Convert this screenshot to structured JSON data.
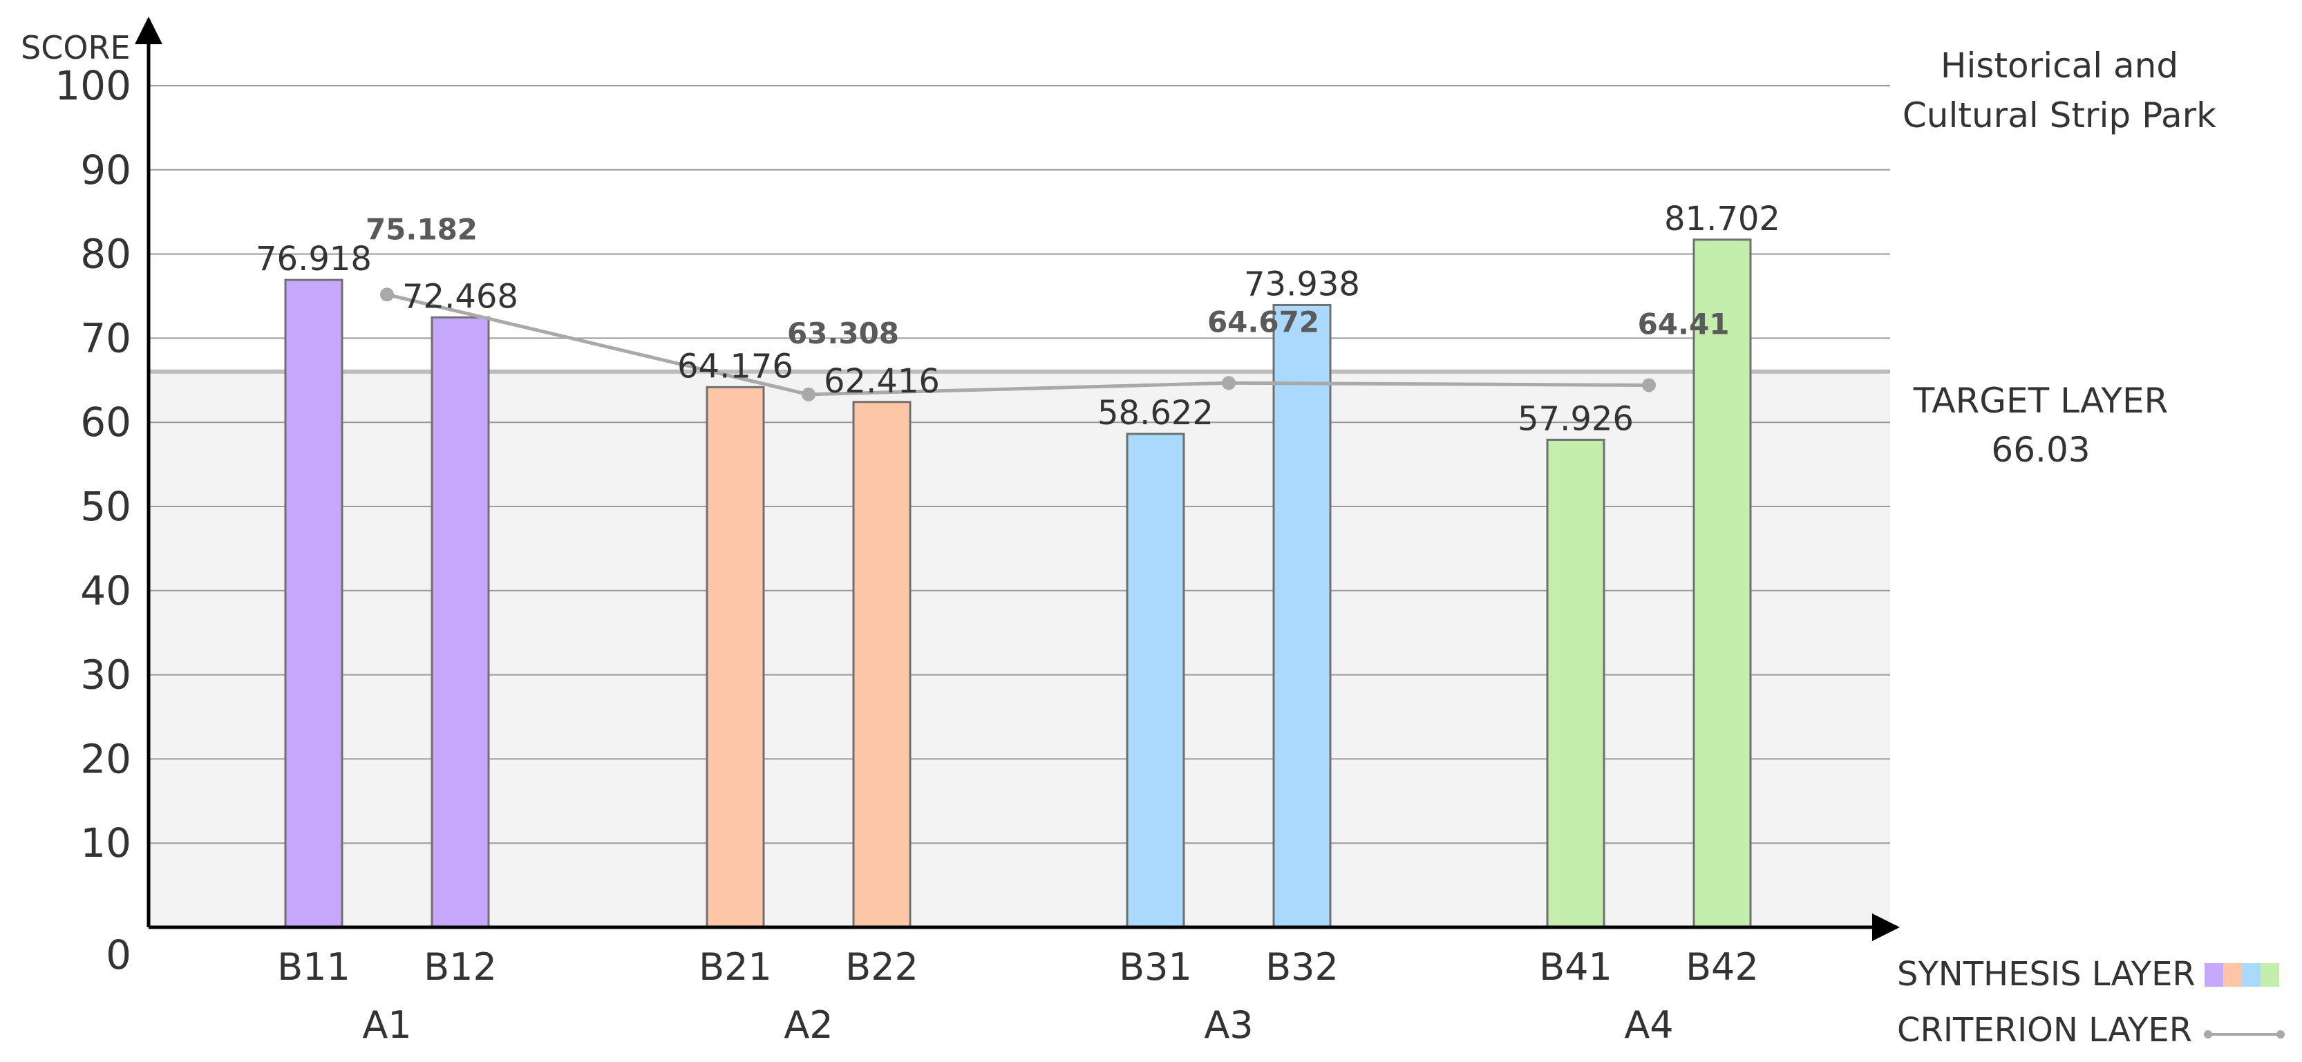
{
  "chart_data": {
    "type": "bar",
    "title": "Historical and Cultural Strip Park",
    "ylabel": "SCORE",
    "ylim": [
      0,
      100
    ],
    "yticks": [
      0,
      10,
      20,
      30,
      40,
      50,
      60,
      70,
      80,
      90,
      100
    ],
    "grid": true,
    "groups": [
      {
        "name": "A1",
        "color": "#c5a8fb",
        "bars": [
          {
            "label": "B11",
            "value": 76.918
          },
          {
            "label": "B12",
            "value": 72.468
          }
        ]
      },
      {
        "name": "A2",
        "color": "#fdc7a7",
        "bars": [
          {
            "label": "B21",
            "value": 64.176
          },
          {
            "label": "B22",
            "value": 62.416
          }
        ]
      },
      {
        "name": "A3",
        "color": "#a9d9fd",
        "bars": [
          {
            "label": "B31",
            "value": 58.622
          },
          {
            "label": "B32",
            "value": 73.938
          }
        ]
      },
      {
        "name": "A4",
        "color": "#c4eeac",
        "bars": [
          {
            "label": "B41",
            "value": 57.926
          },
          {
            "label": "B42",
            "value": 81.702
          }
        ]
      }
    ],
    "criterion_line": {
      "name": "CRITERION LAYER",
      "points": [
        {
          "group": "A1",
          "value": 75.182,
          "label": "75.182"
        },
        {
          "group": "A2",
          "value": 63.308,
          "label": "63.308"
        },
        {
          "group": "A3",
          "value": 64.672,
          "label": "64.672"
        },
        {
          "group": "A4",
          "value": 64.41,
          "label": "64.41"
        }
      ]
    },
    "target": {
      "label": "TARGET LAYER",
      "value": 66.03,
      "value_label": "66.03"
    },
    "legend": [
      {
        "label": "SYNTHESIS LAYER",
        "swatches": [
          "#c5a8fb",
          "#fdc7a7",
          "#a9d9fd",
          "#c4eeac"
        ]
      },
      {
        "label": "CRITERION LAYER",
        "line_color": "#a9a9a9"
      }
    ],
    "legend_position": "bottom-right"
  }
}
